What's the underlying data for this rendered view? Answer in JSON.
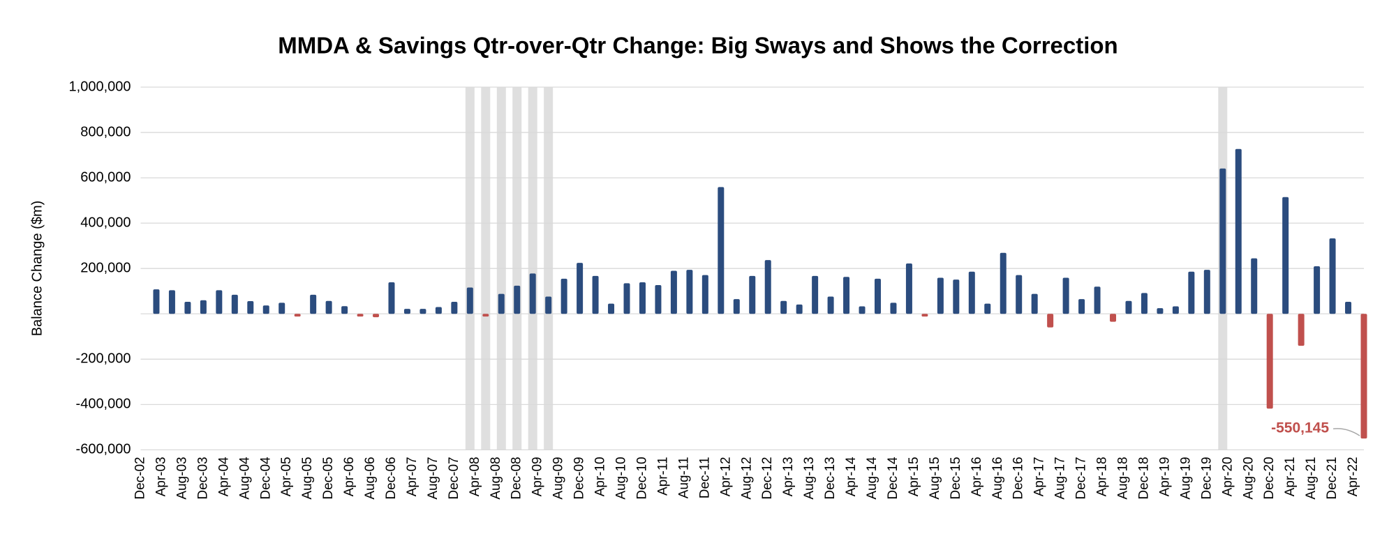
{
  "chart_data": {
    "type": "bar",
    "title": "MMDA & Savings Qtr-over-Qtr Change: Big Sways and Shows the Correction",
    "y_label": "Balance Change ($m)",
    "color": "#2b4c7e",
    "negative_color": "#c0504d",
    "shading_color": "#d9d9d9",
    "recession_shading": [
      "2008-03",
      "2008-06",
      "2008-09",
      "2008-12",
      "2009-03",
      "2009-06",
      "2020-03"
    ],
    "x": [
      "2003-03",
      "2003-06",
      "2003-09",
      "2003-12",
      "2004-03",
      "2004-06",
      "2004-09",
      "2004-12",
      "2005-03",
      "2005-06",
      "2005-09",
      "2005-12",
      "2006-03",
      "2006-06",
      "2006-09",
      "2006-12",
      "2007-03",
      "2007-06",
      "2007-09",
      "2007-12",
      "2008-03",
      "2008-06",
      "2008-09",
      "2008-12",
      "2009-03",
      "2009-06",
      "2009-09",
      "2009-12",
      "2010-03",
      "2010-06",
      "2010-09",
      "2010-12",
      "2011-03",
      "2011-06",
      "2011-09",
      "2011-12",
      "2012-03",
      "2012-06",
      "2012-09",
      "2012-12",
      "2013-03",
      "2013-06",
      "2013-09",
      "2013-12",
      "2014-03",
      "2014-06",
      "2014-09",
      "2014-12",
      "2015-03",
      "2015-06",
      "2015-09",
      "2015-12",
      "2016-03",
      "2016-06",
      "2016-09",
      "2016-12",
      "2017-03",
      "2017-06",
      "2017-09",
      "2017-12",
      "2018-03",
      "2018-06",
      "2018-09",
      "2018-12",
      "2019-03",
      "2019-06",
      "2019-09",
      "2019-12",
      "2020-03",
      "2020-06",
      "2020-09",
      "2020-12",
      "2021-03",
      "2021-06",
      "2021-09",
      "2021-12",
      "2022-03",
      "2022-06"
    ],
    "values": [
      108000,
      104000,
      53000,
      60000,
      104000,
      84000,
      56000,
      37000,
      49000,
      -12000,
      84000,
      57000,
      34000,
      -12000,
      -15000,
      139000,
      22000,
      22000,
      30000,
      53000,
      116000,
      -12000,
      88000,
      124000,
      178000,
      76000,
      155000,
      225000,
      167000,
      45000,
      135000,
      139000,
      127000,
      190000,
      194000,
      171000,
      559000,
      65000,
      167000,
      237000,
      57000,
      41000,
      167000,
      76000,
      163000,
      33000,
      155000,
      49000,
      222000,
      -12000,
      159000,
      151000,
      186000,
      45000,
      269000,
      171000,
      88000,
      -60000,
      159000,
      65000,
      120000,
      -35000,
      57000,
      92000,
      25000,
      33000,
      186000,
      194000,
      641000,
      727000,
      245000,
      -418000,
      515000,
      -141000,
      210000,
      333000,
      53000,
      -550145
    ],
    "value_labels": [
      null,
      null,
      null,
      null,
      null,
      null,
      null,
      null,
      null,
      null,
      null,
      null,
      null,
      null,
      null,
      null,
      null,
      null,
      null,
      null,
      null,
      null,
      null,
      null,
      null,
      null,
      null,
      null,
      null,
      null,
      null,
      null,
      null,
      null,
      null,
      null,
      null,
      null,
      null,
      null,
      null,
      null,
      null,
      null,
      null,
      null,
      null,
      null,
      null,
      null,
      null,
      null,
      null,
      null,
      null,
      null,
      null,
      null,
      null,
      null,
      null,
      null,
      null,
      null,
      null,
      null,
      null,
      null,
      null,
      null,
      null,
      null,
      null,
      null,
      null,
      null,
      null,
      "-550,145"
    ],
    "xlim": [
      "2002-12",
      "2022-06"
    ],
    "xticks": [
      {
        "value": "2002-12",
        "label": "Dec-02"
      },
      {
        "value": "2003-04",
        "label": "Apr-03"
      },
      {
        "value": "2003-08",
        "label": "Aug-03"
      },
      {
        "value": "2003-12",
        "label": "Dec-03"
      },
      {
        "value": "2004-04",
        "label": "Apr-04"
      },
      {
        "value": "2004-08",
        "label": "Aug-04"
      },
      {
        "value": "2004-12",
        "label": "Dec-04"
      },
      {
        "value": "2005-04",
        "label": "Apr-05"
      },
      {
        "value": "2005-08",
        "label": "Aug-05"
      },
      {
        "value": "2005-12",
        "label": "Dec-05"
      },
      {
        "value": "2006-04",
        "label": "Apr-06"
      },
      {
        "value": "2006-08",
        "label": "Aug-06"
      },
      {
        "value": "2006-12",
        "label": "Dec-06"
      },
      {
        "value": "2007-04",
        "label": "Apr-07"
      },
      {
        "value": "2007-08",
        "label": "Aug-07"
      },
      {
        "value": "2007-12",
        "label": "Dec-07"
      },
      {
        "value": "2008-04",
        "label": "Apr-08"
      },
      {
        "value": "2008-08",
        "label": "Aug-08"
      },
      {
        "value": "2008-12",
        "label": "Dec-08"
      },
      {
        "value": "2009-04",
        "label": "Apr-09"
      },
      {
        "value": "2009-08",
        "label": "Aug-09"
      },
      {
        "value": "2009-12",
        "label": "Dec-09"
      },
      {
        "value": "2010-04",
        "label": "Apr-10"
      },
      {
        "value": "2010-08",
        "label": "Aug-10"
      },
      {
        "value": "2010-12",
        "label": "Dec-10"
      },
      {
        "value": "2011-04",
        "label": "Apr-11"
      },
      {
        "value": "2011-08",
        "label": "Aug-11"
      },
      {
        "value": "2011-12",
        "label": "Dec-11"
      },
      {
        "value": "2012-04",
        "label": "Apr-12"
      },
      {
        "value": "2012-08",
        "label": "Aug-12"
      },
      {
        "value": "2012-12",
        "label": "Dec-12"
      },
      {
        "value": "2013-04",
        "label": "Apr-13"
      },
      {
        "value": "2013-08",
        "label": "Aug-13"
      },
      {
        "value": "2013-12",
        "label": "Dec-13"
      },
      {
        "value": "2014-04",
        "label": "Apr-14"
      },
      {
        "value": "2014-08",
        "label": "Aug-14"
      },
      {
        "value": "2014-12",
        "label": "Dec-14"
      },
      {
        "value": "2015-04",
        "label": "Apr-15"
      },
      {
        "value": "2015-08",
        "label": "Aug-15"
      },
      {
        "value": "2015-12",
        "label": "Dec-15"
      },
      {
        "value": "2016-04",
        "label": "Apr-16"
      },
      {
        "value": "2016-08",
        "label": "Aug-16"
      },
      {
        "value": "2016-12",
        "label": "Dec-16"
      },
      {
        "value": "2017-04",
        "label": "Apr-17"
      },
      {
        "value": "2017-08",
        "label": "Aug-17"
      },
      {
        "value": "2017-12",
        "label": "Dec-17"
      },
      {
        "value": "2018-04",
        "label": "Apr-18"
      },
      {
        "value": "2018-08",
        "label": "Aug-18"
      },
      {
        "value": "2018-12",
        "label": "Dec-18"
      },
      {
        "value": "2019-04",
        "label": "Apr-19"
      },
      {
        "value": "2019-08",
        "label": "Aug-19"
      },
      {
        "value": "2019-12",
        "label": "Dec-19"
      },
      {
        "value": "2020-04",
        "label": "Apr-20"
      },
      {
        "value": "2020-08",
        "label": "Aug-20"
      },
      {
        "value": "2020-12",
        "label": "Dec-20"
      },
      {
        "value": "2021-04",
        "label": "Apr-21"
      },
      {
        "value": "2021-08",
        "label": "Aug-21"
      },
      {
        "value": "2021-12",
        "label": "Dec-21"
      },
      {
        "value": "2022-04",
        "label": "Apr-22"
      }
    ],
    "ylim": [
      -600000,
      1000000
    ],
    "yticks": [
      {
        "value": 1000000,
        "label": "1,000,000"
      },
      {
        "value": 800000,
        "label": "800,000"
      },
      {
        "value": 600000,
        "label": "600,000"
      },
      {
        "value": 400000,
        "label": "400,000"
      },
      {
        "value": 200000,
        "label": "200,000"
      },
      {
        "value": -200000,
        "label": "-200,000"
      },
      {
        "value": -400000,
        "label": "-400,000"
      },
      {
        "value": -600000,
        "label": "-600,000"
      }
    ],
    "grid": true
  }
}
